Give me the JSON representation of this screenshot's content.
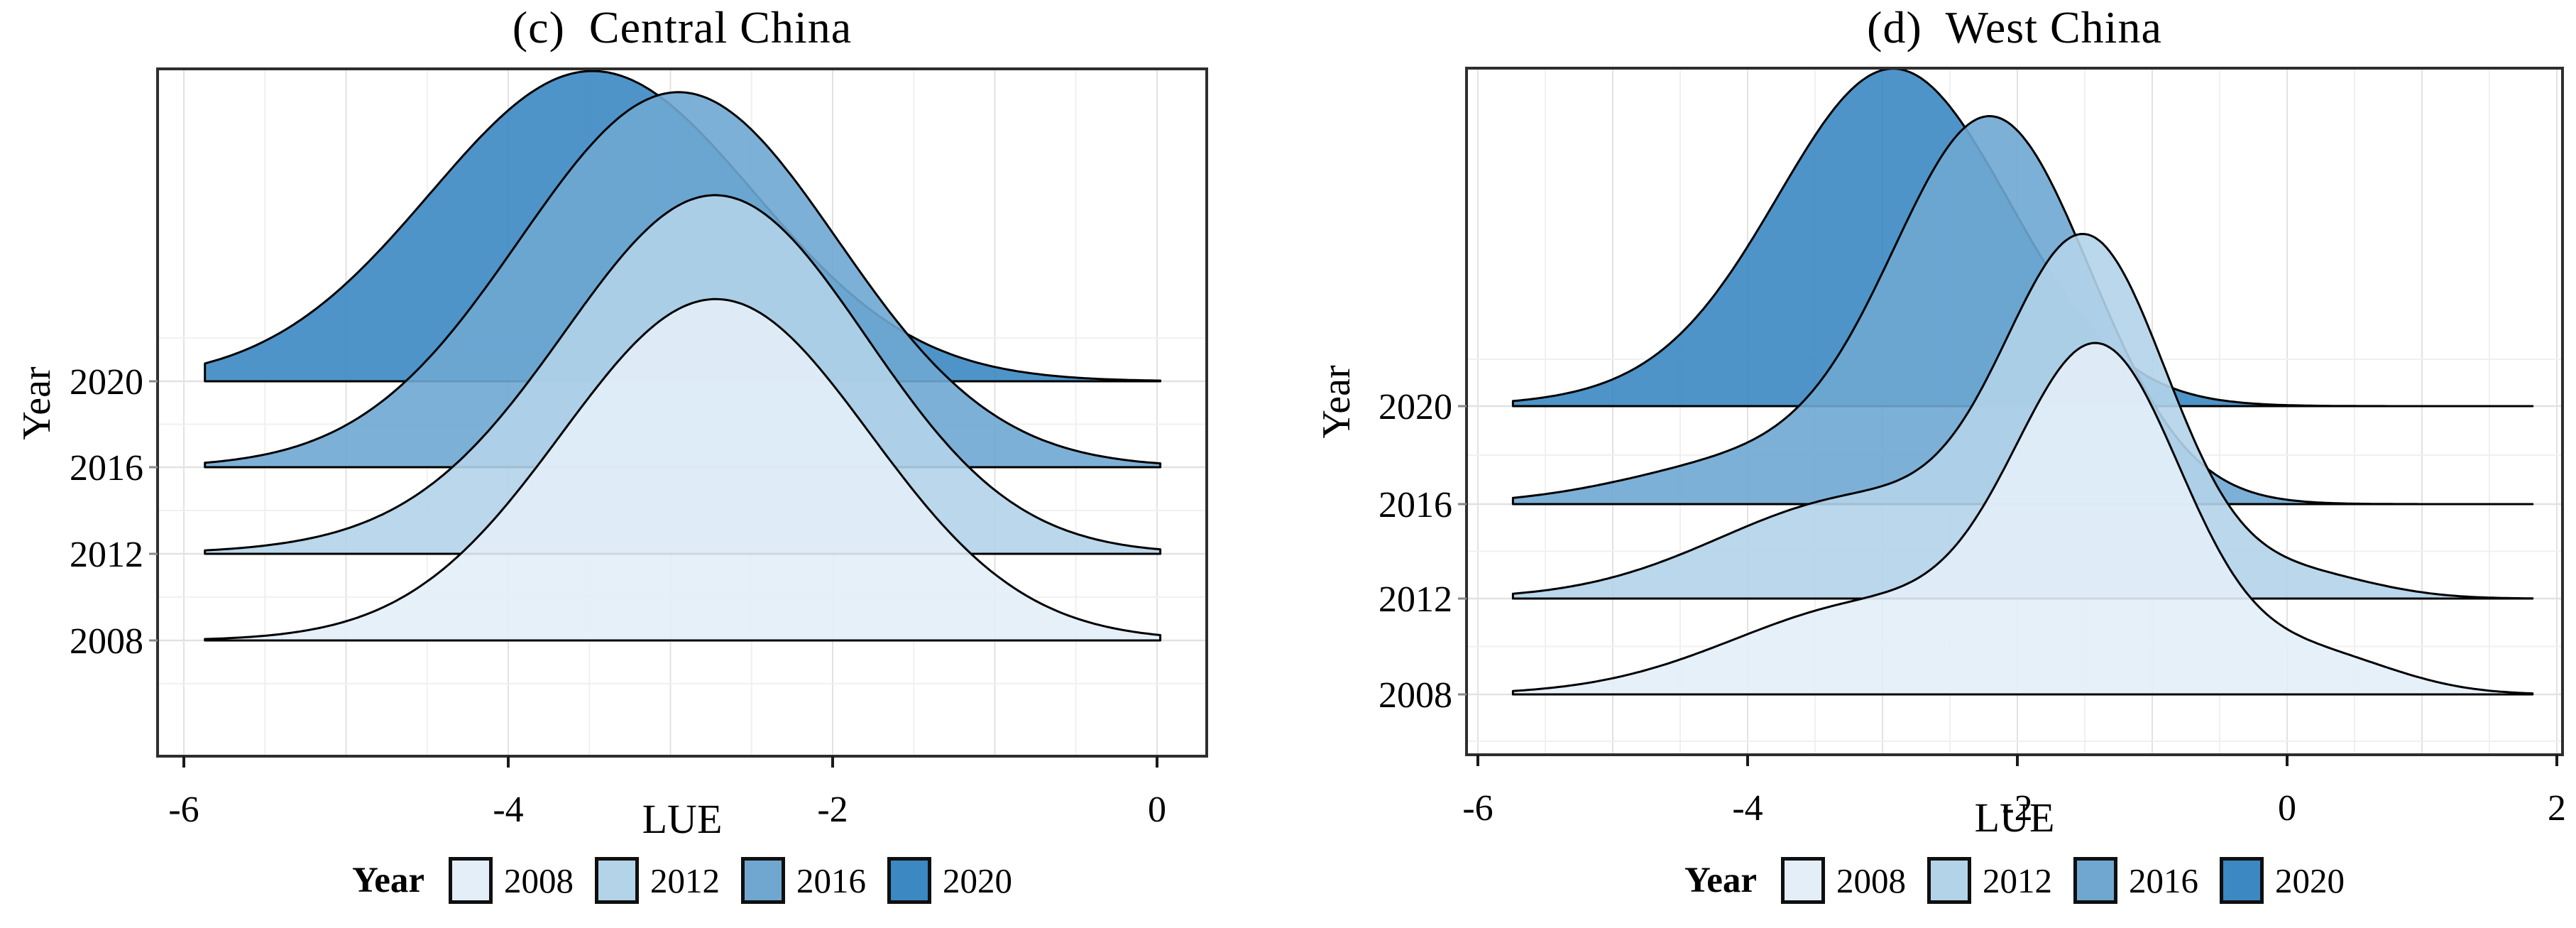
{
  "figure": {
    "background": "#ffffff",
    "text_color": "#000000",
    "frame_color": "#2e2e2e",
    "grid_major_color": "#e2e2e2",
    "grid_minor_color": "#f0f0f0",
    "curve_stroke": "#000000"
  },
  "palette": {
    "2008": "#e3eef8",
    "2012": "#b3d3e9",
    "2016": "#6fa7d1",
    "2020": "#3b88c2"
  },
  "chart_data": [
    {
      "type": "area",
      "variant": "ridgeline-density",
      "title": "(c)  Central China",
      "xlabel": "LUE",
      "ylabel": "Year",
      "categories": [
        "2008",
        "2012",
        "2016",
        "2020"
      ],
      "x_domain": [
        -6.17,
        0.31
      ],
      "trim": [
        -5.87,
        0.02
      ],
      "x_ticks": [
        {
          "v": -6,
          "label": "-6"
        },
        {
          "v": -4,
          "label": "-4"
        },
        {
          "v": -2,
          "label": "-2"
        },
        {
          "v": 0,
          "label": "0"
        }
      ],
      "grid": "on",
      "legend_position": "bottom",
      "series": [
        {
          "year": "2008",
          "color": "#e3eef8",
          "peak_rows": 3.95,
          "components": [
            {
              "mean": -2.72,
              "sd": 0.95,
              "weight": 1
            }
          ]
        },
        {
          "year": "2012",
          "color": "#b3d3e9",
          "peak_rows": 4.15,
          "components": [
            {
              "mean": -2.7,
              "sd": 0.92,
              "weight": 1
            },
            {
              "mean": -3.9,
              "sd": 1.0,
              "weight": 0.05
            }
          ]
        },
        {
          "year": "2016",
          "color": "#6fa7d1",
          "peak_rows": 4.34,
          "components": [
            {
              "mean": -2.95,
              "sd": 0.98,
              "weight": 1
            }
          ]
        },
        {
          "year": "2020",
          "color": "#3b88c2",
          "peak_rows": 3.59,
          "components": [
            {
              "mean": -3.48,
              "sd": 1.0,
              "weight": 1
            }
          ]
        }
      ],
      "legend": {
        "title": "Year",
        "items": [
          {
            "label": "2008",
            "color": "#e3eef8"
          },
          {
            "label": "2012",
            "color": "#b3d3e9"
          },
          {
            "label": "2016",
            "color": "#6fa7d1"
          },
          {
            "label": "2020",
            "color": "#3b88c2"
          }
        ]
      }
    },
    {
      "type": "area",
      "variant": "ridgeline-density",
      "title": "(d)  West China",
      "xlabel": "LUE",
      "ylabel": "Year",
      "categories": [
        "2008",
        "2012",
        "2016",
        "2020"
      ],
      "x_domain": [
        -6.1,
        2.04
      ],
      "trim": [
        -5.74,
        1.82
      ],
      "x_ticks": [
        {
          "v": -6,
          "label": "-6"
        },
        {
          "v": -4,
          "label": "-4"
        },
        {
          "v": -2,
          "label": "-2"
        },
        {
          "v": 0,
          "label": "0"
        },
        {
          "v": 2,
          "label": "2"
        }
      ],
      "grid": "on",
      "legend_position": "bottom",
      "series": [
        {
          "year": "2008",
          "color": "#e3eef8",
          "peak_rows": 3.75,
          "components": [
            {
              "mean": -1.38,
              "sd": 0.62,
              "weight": 1
            },
            {
              "mean": -3.05,
              "sd": 1.05,
              "weight": 0.28
            },
            {
              "mean": 0.2,
              "sd": 0.6,
              "weight": 0.12
            }
          ]
        },
        {
          "year": "2012",
          "color": "#b3d3e9",
          "peak_rows": 3.89,
          "components": [
            {
              "mean": -1.47,
              "sd": 0.6,
              "weight": 1
            },
            {
              "mean": -3.15,
              "sd": 1.05,
              "weight": 0.3
            },
            {
              "mean": 0.1,
              "sd": 0.55,
              "weight": 0.07
            }
          ]
        },
        {
          "year": "2016",
          "color": "#6fa7d1",
          "peak_rows": 4.14,
          "components": [
            {
              "mean": -2.18,
              "sd": 0.73,
              "weight": 1
            },
            {
              "mean": -3.85,
              "sd": 0.95,
              "weight": 0.12
            }
          ]
        },
        {
          "year": "2020",
          "color": "#3b88c2",
          "peak_rows": 3.6,
          "components": [
            {
              "mean": -2.9,
              "sd": 0.85,
              "weight": 1
            },
            {
              "mean": -4.2,
              "sd": 0.9,
              "weight": 0.05
            }
          ]
        }
      ],
      "legend": {
        "title": "Year",
        "items": [
          {
            "label": "2008",
            "color": "#e3eef8"
          },
          {
            "label": "2012",
            "color": "#b3d3e9"
          },
          {
            "label": "2016",
            "color": "#6fa7d1"
          },
          {
            "label": "2020",
            "color": "#3b88c2"
          }
        ]
      }
    }
  ]
}
